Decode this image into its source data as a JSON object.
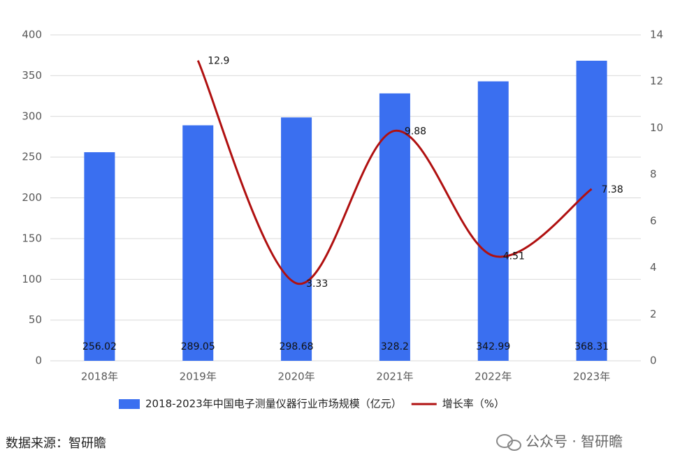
{
  "chart_data": {
    "type": "bar-line",
    "categories": [
      "2018年",
      "2019年",
      "2020年",
      "2021年",
      "2022年",
      "2023年"
    ],
    "series": [
      {
        "name": "2018-2023年中国电子测量仪器行业市场规模（亿元）",
        "type": "bar",
        "color": "#3a6ff0",
        "values": [
          256.02,
          289.05,
          298.68,
          328.2,
          342.99,
          368.31
        ]
      },
      {
        "name": "增长率（%）",
        "type": "line",
        "axis": "y2",
        "color": "#b01010",
        "values": [
          null,
          12.9,
          3.33,
          9.88,
          4.51,
          7.38
        ]
      }
    ],
    "ylim": [
      0,
      400
    ],
    "yticks": [
      0,
      50,
      100,
      150,
      200,
      250,
      300,
      350,
      400
    ],
    "y2lim": [
      0,
      14
    ],
    "y2ticks": [
      0,
      2,
      4,
      6,
      8,
      10,
      12,
      14
    ],
    "grid": true,
    "legend": "bottom",
    "source": "数据来源：智研瞻",
    "watermark": "公众号 · 智研瞻"
  }
}
